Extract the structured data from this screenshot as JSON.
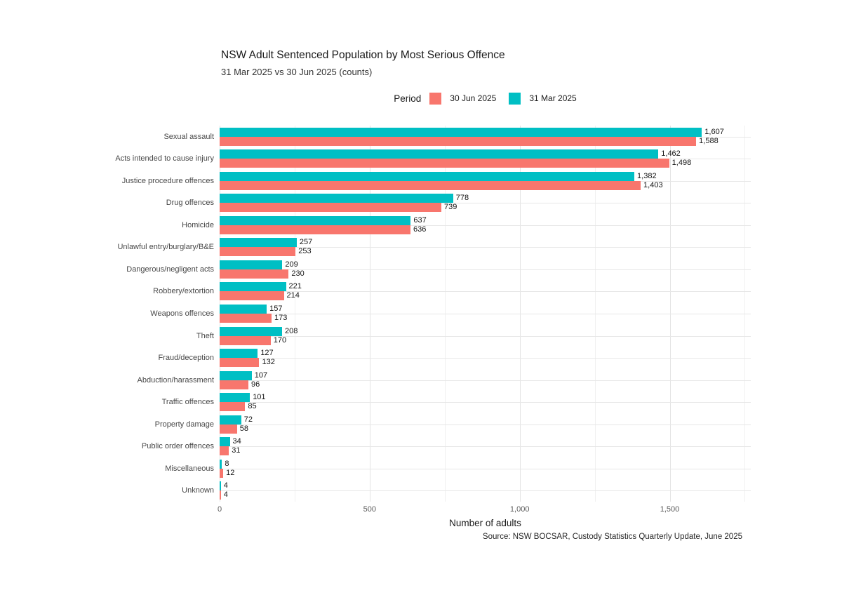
{
  "title": "NSW Adult Sentenced Population by Most Serious Offence",
  "subtitle": "31 Mar 2025 vs 30 Jun 2025 (counts)",
  "legend": {
    "title": "Period",
    "items": [
      {
        "label": "30 Jun 2025",
        "color": "#F8766D"
      },
      {
        "label": "31 Mar 2025",
        "color": "#00BFC4"
      }
    ]
  },
  "caption": "Source: NSW BOCSAR, Custody Statistics Quarterly Update, June 2025",
  "chart_data": {
    "type": "bar",
    "orientation": "horizontal",
    "title": "NSW Adult Sentenced Population by Most Serious Offence",
    "subtitle": "31 Mar 2025 vs 30 Jun 2025 (counts)",
    "xlabel": "Number of adults",
    "ylabel": "",
    "xlim": [
      0,
      1770
    ],
    "grid": "on",
    "legend_position": "top",
    "categories": [
      "Sexual assault",
      "Acts intended to cause injury",
      "Justice procedure offences",
      "Drug offences",
      "Homicide",
      "Unlawful entry/burglary/B&E",
      "Dangerous/negligent acts",
      "Robbery/extortion",
      "Weapons offences",
      "Theft",
      "Fraud/deception",
      "Abduction/harassment",
      "Traffic offences",
      "Property damage",
      "Public order offences",
      "Miscellaneous",
      "Unknown"
    ],
    "series": [
      {
        "name": "31 Mar 2025",
        "color": "#00BFC4",
        "position": "top",
        "values": [
          1607,
          1462,
          1382,
          778,
          637,
          257,
          209,
          221,
          157,
          208,
          127,
          107,
          101,
          72,
          34,
          8,
          4
        ]
      },
      {
        "name": "30 Jun 2025",
        "color": "#F8766D",
        "position": "bottom",
        "values": [
          1588,
          1498,
          1403,
          739,
          636,
          253,
          230,
          214,
          173,
          170,
          132,
          96,
          85,
          58,
          31,
          12,
          4
        ]
      }
    ],
    "x_ticks": [
      {
        "value": 0,
        "label": "0"
      },
      {
        "value": 500,
        "label": "500"
      },
      {
        "value": 1000,
        "label": "1,000"
      },
      {
        "value": 1500,
        "label": "1,500"
      }
    ],
    "grid_major": [
      0,
      500,
      1000,
      1500
    ],
    "grid_minor": [
      250,
      750,
      1250,
      1750
    ]
  }
}
